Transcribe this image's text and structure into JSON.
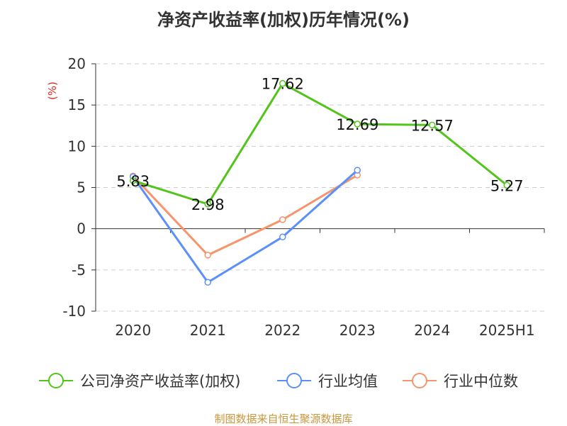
{
  "chart_data": {
    "type": "line",
    "title": "净资产收益率(加权)历年情况(%)",
    "ylabel": "(%)",
    "xlabel": "",
    "categories": [
      "2020",
      "2021",
      "2022",
      "2023",
      "2024",
      "2025H1"
    ],
    "ylim": [
      -10,
      20
    ],
    "yticks": [
      -10,
      -5,
      0,
      5,
      10,
      15,
      20
    ],
    "grid": true,
    "legend_position": "bottom",
    "series": [
      {
        "name": "公司净资产收益率(加权)",
        "color": "#52c41a",
        "values": [
          5.83,
          2.98,
          17.62,
          12.69,
          12.57,
          5.27
        ],
        "show_labels": true
      },
      {
        "name": "行业均值",
        "color": "#5b8ff9",
        "values": [
          6.3,
          -6.5,
          -1.0,
          7.1,
          null,
          null
        ],
        "show_labels": false
      },
      {
        "name": "行业中位数",
        "color": "#f6946b",
        "values": [
          6.4,
          -3.2,
          1.1,
          6.5,
          null,
          null
        ],
        "show_labels": false
      }
    ]
  },
  "footer": {
    "source": "制图数据来自恒生聚源数据库"
  },
  "colors": {
    "axis": "#333333",
    "grid": "#cccccc",
    "ylabel": "#e0281e",
    "source": "#c8963c"
  }
}
